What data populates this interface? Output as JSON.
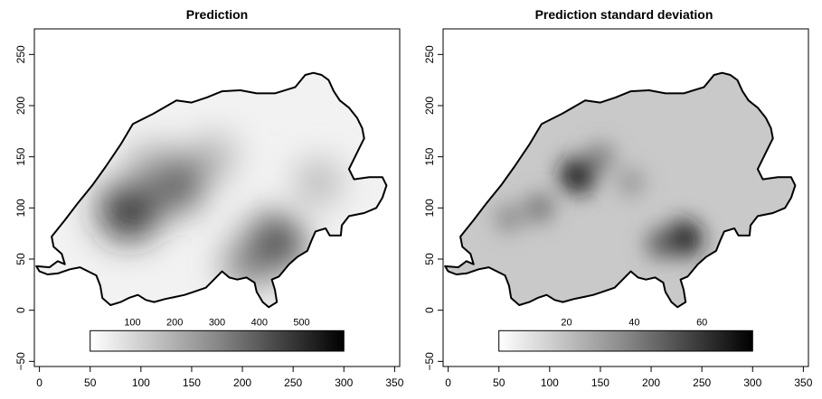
{
  "chart_data": [
    {
      "type": "heatmap",
      "title": "Prediction",
      "xlabel": "",
      "ylabel": "",
      "xlim": [
        -5,
        355
      ],
      "ylim": [
        -55,
        275
      ],
      "x_ticks": [
        "0",
        "50",
        "100",
        "150",
        "200",
        "250",
        "300",
        "350"
      ],
      "y_ticks": [
        "-50",
        "0",
        "50",
        "100",
        "150",
        "200",
        "250"
      ],
      "colorbar": {
        "range": [
          0,
          600
        ],
        "ticks": [
          "100",
          "200",
          "300",
          "400",
          "500"
        ],
        "x_extent": [
          50,
          300
        ],
        "y_extent": [
          -40,
          -20
        ]
      },
      "grid": false,
      "hotspots": [
        {
          "x": 88,
          "y": 97,
          "level": 0.85
        },
        {
          "x": 135,
          "y": 125,
          "level": 0.75
        },
        {
          "x": 110,
          "y": 140,
          "level": 0.35
        },
        {
          "x": 172,
          "y": 150,
          "level": 0.3
        },
        {
          "x": 232,
          "y": 65,
          "level": 0.8
        },
        {
          "x": 205,
          "y": 45,
          "level": 0.5
        },
        {
          "x": 275,
          "y": 125,
          "level": 0.3
        }
      ]
    },
    {
      "type": "heatmap",
      "title": "Prediction standard deviation",
      "xlabel": "",
      "ylabel": "",
      "xlim": [
        -5,
        355
      ],
      "ylim": [
        -55,
        275
      ],
      "x_ticks": [
        "0",
        "50",
        "100",
        "150",
        "200",
        "250",
        "300",
        "350"
      ],
      "y_ticks": [
        "-50",
        "0",
        "50",
        "100",
        "150",
        "200",
        "250"
      ],
      "colorbar": {
        "range": [
          0,
          75
        ],
        "ticks": [
          "20",
          "40",
          "60"
        ],
        "x_extent": [
          50,
          300
        ],
        "y_extent": [
          -40,
          -20
        ]
      },
      "grid": false,
      "hotspots": [
        {
          "x": 128,
          "y": 132,
          "level": 0.9
        },
        {
          "x": 232,
          "y": 70,
          "level": 0.9
        },
        {
          "x": 90,
          "y": 100,
          "level": 0.45
        },
        {
          "x": 150,
          "y": 150,
          "level": 0.4
        },
        {
          "x": 210,
          "y": 65,
          "level": 0.55
        },
        {
          "x": 60,
          "y": 90,
          "level": 0.35
        },
        {
          "x": 180,
          "y": 125,
          "level": 0.3
        }
      ]
    }
  ],
  "outline": [
    [
      -3,
      43
    ],
    [
      10,
      42
    ],
    [
      18,
      48
    ],
    [
      25,
      45
    ],
    [
      22,
      55
    ],
    [
      14,
      62
    ],
    [
      12,
      72
    ],
    [
      25,
      88
    ],
    [
      38,
      105
    ],
    [
      52,
      122
    ],
    [
      65,
      140
    ],
    [
      80,
      162
    ],
    [
      92,
      182
    ],
    [
      112,
      192
    ],
    [
      135,
      205
    ],
    [
      150,
      203
    ],
    [
      165,
      208
    ],
    [
      180,
      214
    ],
    [
      198,
      215
    ],
    [
      214,
      212
    ],
    [
      232,
      212
    ],
    [
      252,
      218
    ],
    [
      262,
      230
    ],
    [
      270,
      232
    ],
    [
      278,
      230
    ],
    [
      285,
      225
    ],
    [
      290,
      214
    ],
    [
      296,
      205
    ],
    [
      305,
      198
    ],
    [
      313,
      188
    ],
    [
      318,
      178
    ],
    [
      320,
      168
    ],
    [
      315,
      158
    ],
    [
      310,
      148
    ],
    [
      305,
      138
    ],
    [
      310,
      128
    ],
    [
      325,
      130
    ],
    [
      338,
      130
    ],
    [
      342,
      122
    ],
    [
      338,
      110
    ],
    [
      332,
      100
    ],
    [
      320,
      95
    ],
    [
      305,
      92
    ],
    [
      298,
      83
    ],
    [
      297,
      73
    ],
    [
      286,
      73
    ],
    [
      282,
      80
    ],
    [
      272,
      77
    ],
    [
      268,
      68
    ],
    [
      264,
      58
    ],
    [
      254,
      52
    ],
    [
      246,
      45
    ],
    [
      236,
      33
    ],
    [
      229,
      30
    ],
    [
      232,
      20
    ],
    [
      234,
      8
    ],
    [
      226,
      3
    ],
    [
      220,
      8
    ],
    [
      214,
      18
    ],
    [
      212,
      27
    ],
    [
      204,
      32
    ],
    [
      195,
      30
    ],
    [
      187,
      32
    ],
    [
      180,
      38
    ],
    [
      172,
      30
    ],
    [
      164,
      22
    ],
    [
      152,
      18
    ],
    [
      143,
      15
    ],
    [
      134,
      13
    ],
    [
      124,
      11
    ],
    [
      113,
      8
    ],
    [
      105,
      10
    ],
    [
      97,
      15
    ],
    [
      88,
      12
    ],
    [
      80,
      8
    ],
    [
      70,
      5
    ],
    [
      62,
      12
    ],
    [
      60,
      24
    ],
    [
      56,
      34
    ],
    [
      48,
      38
    ],
    [
      40,
      42
    ],
    [
      30,
      40
    ],
    [
      18,
      36
    ],
    [
      8,
      35
    ],
    [
      0,
      38
    ]
  ]
}
